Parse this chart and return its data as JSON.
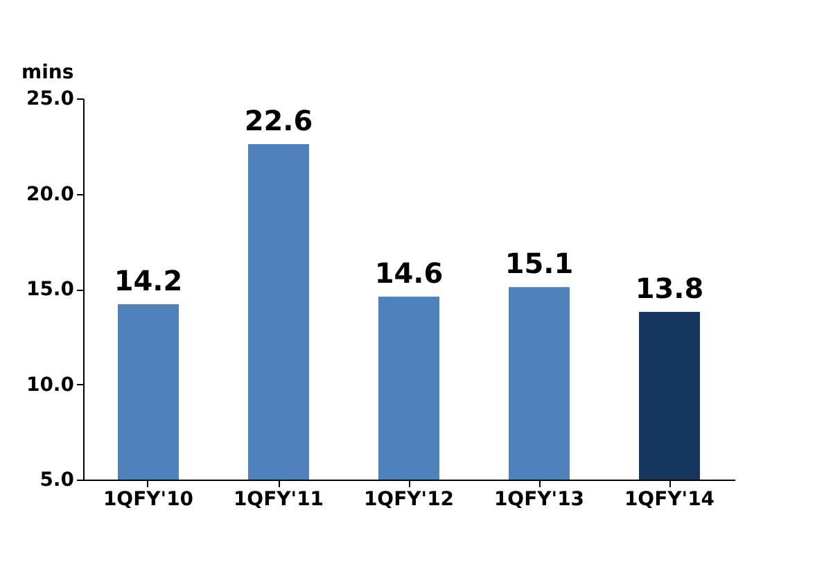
{
  "chart_data": {
    "type": "bar",
    "ylabel": "mins",
    "categories": [
      "1QFY'10",
      "1QFY'11",
      "1QFY'12",
      "1QFY'13",
      "1QFY'14"
    ],
    "values": [
      14.2,
      22.6,
      14.6,
      15.1,
      13.8
    ],
    "colors": [
      "#4f81bd",
      "#4f81bd",
      "#4f81bd",
      "#4f81bd",
      "#17375e"
    ],
    "ylim": [
      5,
      25
    ],
    "yticks": [
      {
        "value": 5,
        "label": "5.0"
      },
      {
        "value": 10,
        "label": "10.0"
      },
      {
        "value": 15,
        "label": "15.0"
      },
      {
        "value": 20,
        "label": "20.0"
      },
      {
        "value": 25,
        "label": "25.0"
      }
    ],
    "data_labels": true,
    "grid": false
  }
}
